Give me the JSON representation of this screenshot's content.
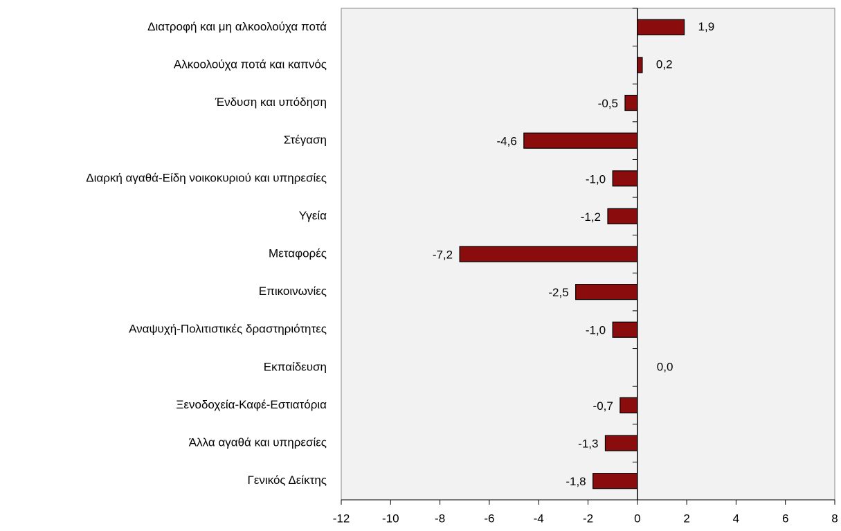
{
  "chart_data": {
    "type": "bar",
    "orientation": "horizontal",
    "categories": [
      "Διατροφή και μη αλκοολούχα ποτά",
      "Αλκοολούχα ποτά και καπνός",
      "Ένδυση και υπόδηση",
      "Στέγαση",
      "Διαρκή αγαθά-Είδη νοικοκυριού και υπηρεσίες",
      "Υγεία",
      "Μεταφορές",
      "Επικοινωνίες",
      "Αναψυχή-Πολιτιστικές δραστηριότητες",
      "Εκπαίδευση",
      "Ξενοδοχεία-Καφέ-Εστιατόρια",
      "Άλλα αγαθά και υπηρεσίες",
      "Γενικός Δείκτης"
    ],
    "values": [
      1.9,
      0.2,
      -0.5,
      -4.6,
      -1.0,
      -1.2,
      -7.2,
      -2.5,
      -1.0,
      0.0,
      -0.7,
      -1.3,
      -1.8
    ],
    "value_labels": [
      "1,9",
      "0,2",
      "-0,5",
      "-4,6",
      "-1,0",
      "-1,2",
      "-7,2",
      "-2,5",
      "-1,0",
      "0,0",
      "-0,7",
      "-1,3",
      "-1,8"
    ],
    "color": "#8b0c0c",
    "xlim": [
      -12,
      8
    ],
    "xticks": [
      -12,
      -10,
      -8,
      -6,
      -4,
      -2,
      0,
      2,
      4,
      6,
      8
    ]
  }
}
